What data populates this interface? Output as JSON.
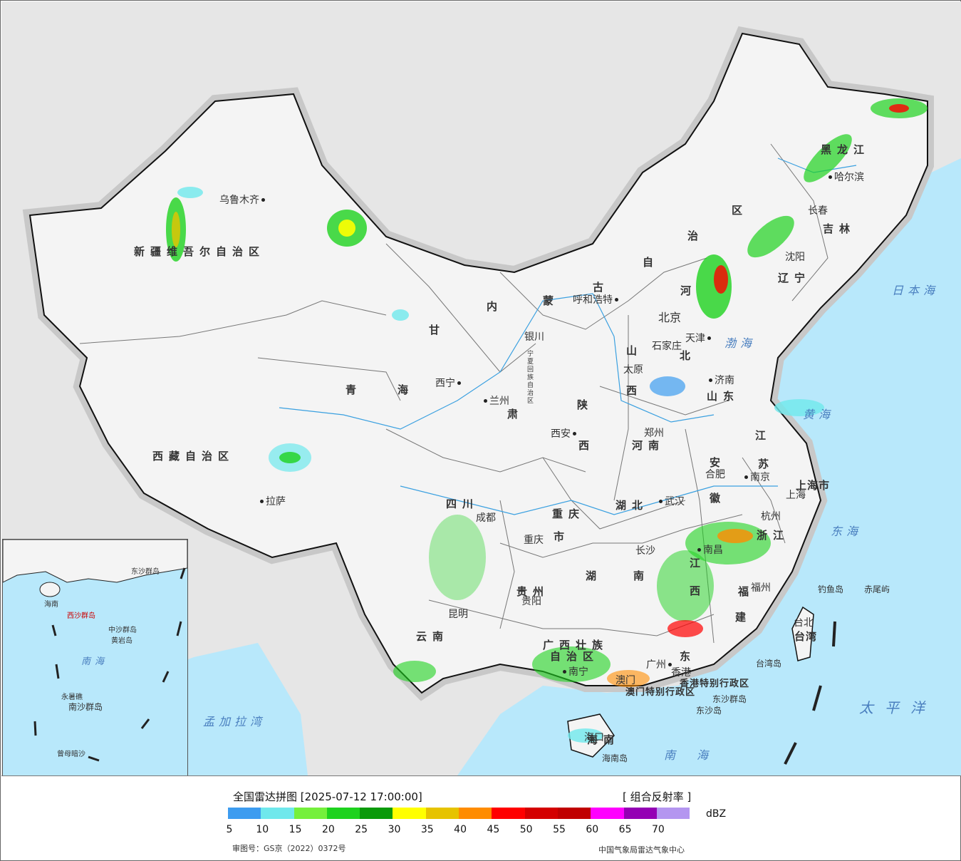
{
  "legend": {
    "title": "全国雷达拼图 [2025-07-12 17:00:00]",
    "product": "[ 组合反射率 ]",
    "unit": "dBZ",
    "ticks": [
      "5",
      "10",
      "15",
      "20",
      "25",
      "30",
      "35",
      "40",
      "45",
      "50",
      "55",
      "60",
      "65",
      "70"
    ],
    "colors": [
      "#3d9cf0",
      "#6fe8ec",
      "#75f03c",
      "#1ed21e",
      "#0a9a0a",
      "#ffff00",
      "#e6c300",
      "#ff8c00",
      "#ff0000",
      "#d40000",
      "#c00000",
      "#ff00ff",
      "#9400b4",
      "#b496f0"
    ]
  },
  "footer": {
    "approval": "审图号：GS京（2022）0372号",
    "org": "中国气象局雷达气象中心"
  },
  "colors": {
    "land": "#f2f2f2",
    "sea": "#b8e8fb",
    "outside": "#e6e6e6",
    "border_halo": "#bdbdbd"
  },
  "regions": {
    "xinjiang": "新疆维吾尔自治区",
    "xizang": "西藏自治区",
    "qinghai_a": "青",
    "qinghai_b": "海",
    "gansu_a": "甘",
    "gansu_b": "肃",
    "neimeng_a": "内",
    "neimeng_b": "蒙",
    "neimeng_c": "古",
    "neimeng_d": "自",
    "neimeng_e": "治",
    "neimeng_f": "区",
    "heilongjiang": "黑龙江",
    "jilin": "吉林",
    "liaoning": "辽宁",
    "hebei_a": "河",
    "hebei_b": "北",
    "shanxi_a": "山",
    "shanxi_b": "西",
    "shaanxi_a": "陕",
    "shaanxi_b": "西",
    "shandong": "山东",
    "henan": "河南",
    "jiangsu_a": "江",
    "jiangsu_b": "苏",
    "anhui_a": "安",
    "anhui_b": "徽",
    "hubei": "湖北",
    "hunan_a": "湖",
    "hunan_b": "南",
    "jiangxi_a": "江",
    "jiangxi_b": "西",
    "zhejiang": "浙江",
    "fujian_a": "福",
    "fujian_b": "建",
    "guangdong": "东",
    "guangxi_a": "广西壮族",
    "guangxi_b": "自治区",
    "guizhou": "贵州",
    "yunnan": "云南",
    "sichuan": "四川",
    "chongqing_a": "重庆",
    "chongqing_b": "市",
    "ningxia": "宁夏回族自治区",
    "hainan": "海南",
    "shanghai": "上海市",
    "taiwan": "台湾",
    "hk": "香港特别行政区",
    "macau": "澳门特别行政区"
  },
  "cities": {
    "urumqi": "乌鲁木齐",
    "lhasa": "拉萨",
    "xining": "西宁",
    "lanzhou": "兰州",
    "yinchuan": "银川",
    "hohhot": "呼和浩特",
    "beijing": "北京",
    "tianjin": "天津",
    "shijiazhuang": "石家庄",
    "taiyuan": "太原",
    "jinan": "济南",
    "zhengzhou": "郑州",
    "xian": "西安",
    "harbin": "哈尔滨",
    "changchun": "长春",
    "shenyang": "沈阳",
    "nanjing": "南京",
    "hefei": "合肥",
    "shanghai_c": "上海",
    "hangzhou": "杭州",
    "wuhan": "武汉",
    "changsha": "长沙",
    "nanchang": "南昌",
    "fuzhou": "福州",
    "chengdu": "成都",
    "chongqing": "重庆",
    "guiyang": "贵阳",
    "kunming": "昆明",
    "nanning": "南宁",
    "guangzhou": "广州",
    "hongkong": "香港",
    "macao": "澳门",
    "haikou": "海口",
    "taipei": "台北"
  },
  "seas": {
    "japan_sea": "日本海",
    "bohai": "渤海",
    "yellow_sea": "黄海",
    "east_sea": "东海",
    "pacific": "太平洋",
    "south_sea": "南海",
    "bengal": "孟加拉湾"
  },
  "islands": {
    "diaoyu": "钓鱼岛",
    "chiwei": "赤尾屿",
    "taiwan_island": "台湾岛",
    "dongsha_q": "东沙群岛",
    "dongsha": "东沙岛",
    "hainan_island": "海南岛"
  },
  "inset": {
    "south_sea": "南海",
    "zhongsha": "中沙群岛",
    "nansha": "南沙群岛",
    "xisha": "西沙群岛",
    "huangyan": "黄岩岛",
    "zengmu": "曾母暗沙",
    "yongshu": "永暑礁",
    "hainan": "海南",
    "dongsha": "东沙群岛"
  }
}
